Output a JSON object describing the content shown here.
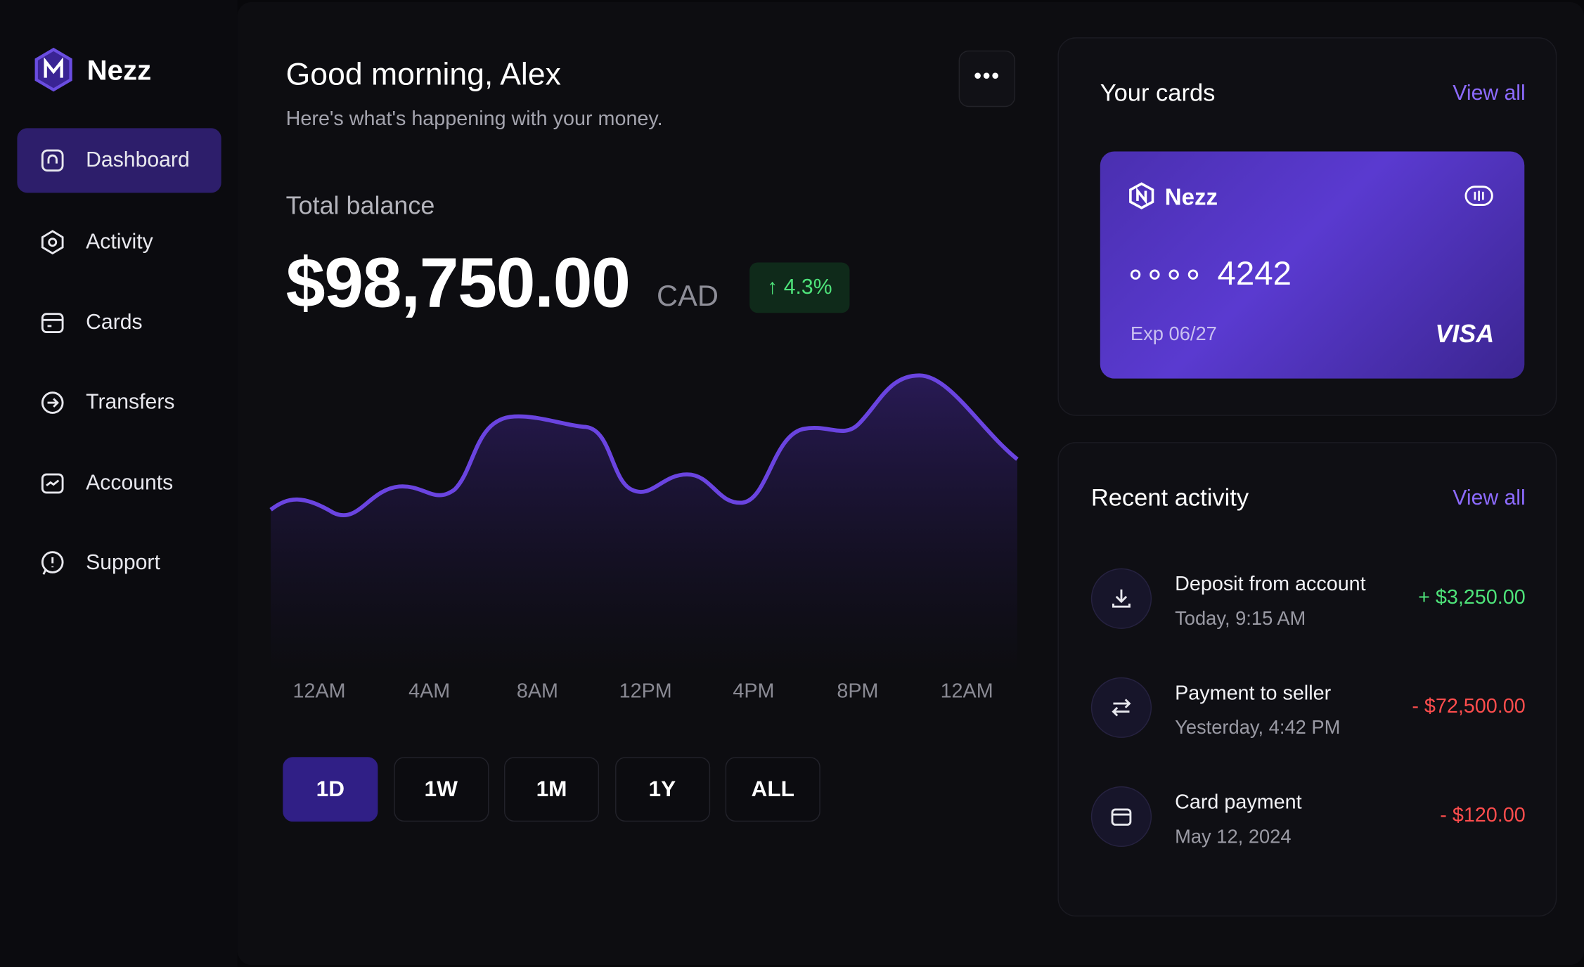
{
  "brand": "Nezz",
  "nav": [
    "Dashboard",
    "Activity",
    "Cards",
    "Transfers",
    "Accounts",
    "Support"
  ],
  "header": {
    "title": "Good morning, Alex",
    "subtitle": "Here's what's happening with your money."
  },
  "balance": {
    "label": "Total balance",
    "amount": "$98,750.00",
    "currency": "CAD",
    "change": "4.3%"
  },
  "chart": {
    "x_labels": [
      "12AM",
      "4AM",
      "8AM",
      "12PM",
      "4PM",
      "8PM",
      "12AM"
    ]
  },
  "ranges": [
    "1D",
    "1W",
    "1M",
    "1Y",
    "ALL"
  ],
  "cards": {
    "title": "Your cards",
    "view_all": "View all",
    "card": {
      "brand": "Nezz",
      "last4": "4242",
      "expiry": "Exp 06/27",
      "network": "VISA"
    }
  },
  "activity": {
    "title": "Recent activity",
    "view_all": "View all",
    "items": [
      {
        "title": "Deposit from account",
        "time": "Today, 9:15 AM",
        "amount": "+ $3,250.00"
      },
      {
        "title": "Payment to seller",
        "time": "Yesterday, 4:42 PM",
        "amount": "- $72,500.00"
      },
      {
        "title": "Card payment",
        "time": "May 12, 2024",
        "amount": "- $120.00"
      }
    ]
  }
}
